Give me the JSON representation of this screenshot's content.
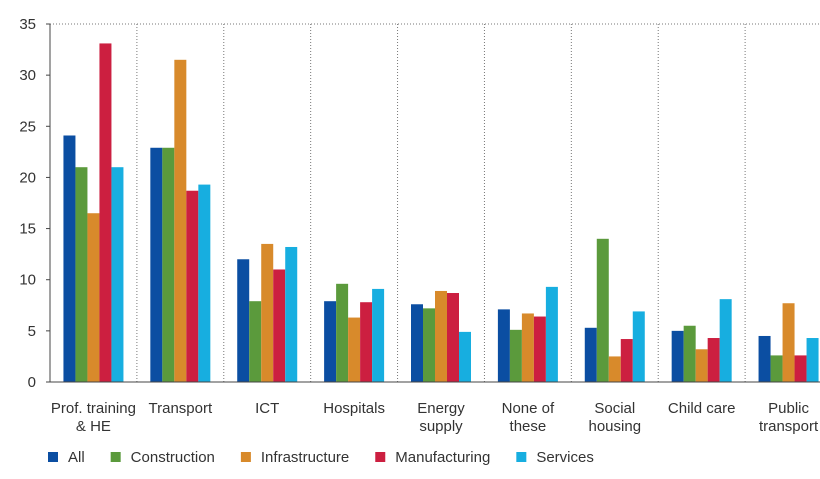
{
  "chart_data": {
    "type": "bar",
    "title": "",
    "xlabel": "",
    "ylabel": "",
    "ylim": [
      0,
      35
    ],
    "yticks": [
      0,
      5,
      10,
      15,
      20,
      25,
      30,
      35
    ],
    "grid": "dotted vertical separators between categories, dotted top line",
    "legend_position": "bottom-left",
    "categories": [
      [
        "Prof. training",
        "& HE"
      ],
      [
        "Transport"
      ],
      [
        "ICT"
      ],
      [
        "Hospitals"
      ],
      [
        "Energy",
        "supply"
      ],
      [
        "None of",
        "these"
      ],
      [
        "Social",
        "housing"
      ],
      [
        "Child care"
      ],
      [
        "Public",
        "transport"
      ]
    ],
    "series": [
      {
        "name": "All",
        "color": "#0b4ea2",
        "values": [
          24.1,
          22.9,
          12.0,
          7.9,
          7.6,
          7.1,
          5.3,
          5.0,
          4.5
        ]
      },
      {
        "name": "Construction",
        "color": "#5b9a3c",
        "values": [
          21.0,
          22.9,
          7.9,
          9.6,
          7.2,
          5.1,
          14.0,
          5.5,
          2.6
        ]
      },
      {
        "name": "Infrastructure",
        "color": "#d88a2b",
        "values": [
          16.5,
          31.5,
          13.5,
          6.3,
          8.9,
          6.7,
          2.5,
          3.2,
          7.7
        ]
      },
      {
        "name": "Manufacturing",
        "color": "#cc1f40",
        "values": [
          33.1,
          18.7,
          11.0,
          7.8,
          8.7,
          6.4,
          4.2,
          4.3,
          2.6
        ]
      },
      {
        "name": "Services",
        "color": "#17aee0",
        "values": [
          21.0,
          19.3,
          13.2,
          9.1,
          4.9,
          9.3,
          6.9,
          8.1,
          4.3
        ]
      }
    ]
  }
}
